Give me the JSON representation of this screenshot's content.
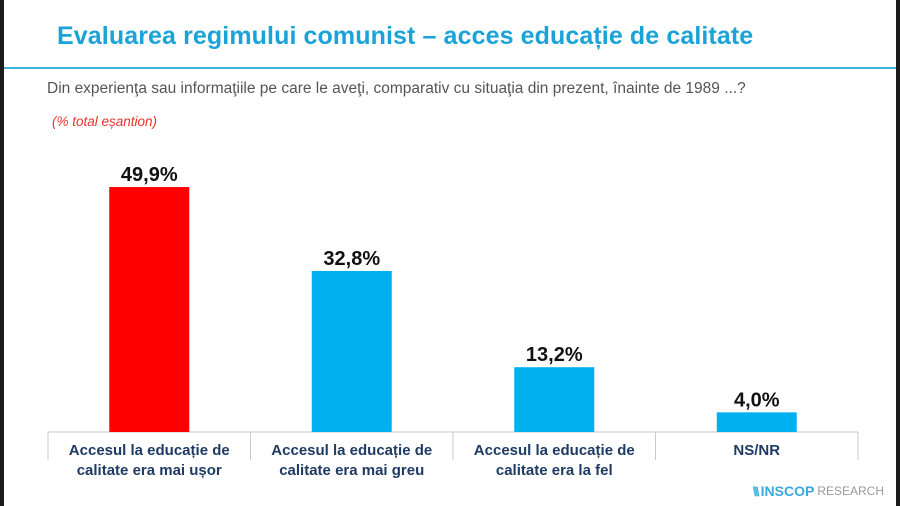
{
  "header": {
    "title": "Evaluarea regimului comunist – acces educație de calitate",
    "question": "Din experienţa sau informaţiile pe care le aveţi, comparativ cu situaţia din prezent, înainte de 1989 ...?",
    "sample_note": "(% total eșantion)"
  },
  "chart_data": {
    "type": "bar",
    "categories": [
      [
        "Accesul la educație de",
        "calitate era mai ușor"
      ],
      [
        "Accesul la educație de",
        "calitate era mai greu"
      ],
      [
        "Accesul la educație de",
        "calitate era la fel"
      ],
      [
        "NS/NR"
      ]
    ],
    "values": [
      49.9,
      32.8,
      13.2,
      4.0
    ],
    "data_labels": [
      "49,9%",
      "32,8%",
      "13,2%",
      "4,0%"
    ],
    "colors": [
      "#ff0000",
      "#00b0f0",
      "#00b0f0",
      "#00b0f0"
    ],
    "ylim": [
      0,
      55
    ],
    "grid": false,
    "legend": "none"
  },
  "footer": {
    "logo_mark": "\\\\\\",
    "logo_brand": "INSCOP",
    "logo_suffix": "RESEARCH"
  }
}
